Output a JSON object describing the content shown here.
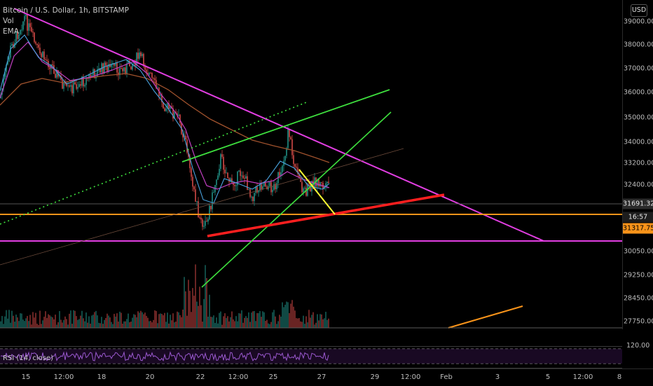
{
  "legend": {
    "symbol_line": "Bitcoin / U.S. Dollar, 1h, BITSTAMP",
    "vol": "Vol",
    "ema": "EMA"
  },
  "price_axis": {
    "currency": "USD",
    "ticks": [
      "39000.00",
      "38000.00",
      "37000.00",
      "36000.00",
      "35000.00",
      "34000.00",
      "33200.00",
      "32400.00",
      "30050.00",
      "29250.00",
      "28450.00",
      "27750.00"
    ],
    "last_price": "31691.32",
    "countdown": "16:57",
    "level_label": "31317.75"
  },
  "rsi": {
    "label": "RSI (14, close)",
    "tick": "120.00"
  },
  "time_axis": {
    "ticks": [
      "15",
      "12:00",
      "18",
      "20",
      "22",
      "12:00",
      "25",
      "27",
      "29",
      "12:00",
      "Feb",
      "3",
      "5",
      "12:00",
      "8"
    ]
  },
  "colors": {
    "magenta_line": "#e23ee2",
    "orange_line": "#f7931a",
    "red_line": "#ff1f1f",
    "green_line": "#3ee03e",
    "yellow_line": "#ffff33",
    "candle_up": "#26a69a",
    "candle_down": "#ef5350"
  }
}
